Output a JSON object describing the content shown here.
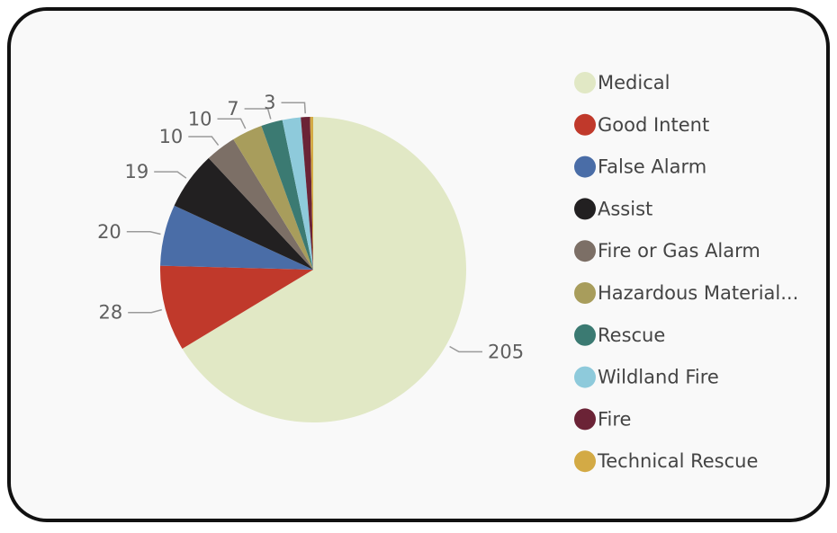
{
  "chart_data": {
    "type": "pie",
    "title": "",
    "legend_placement": "right",
    "slices": [
      {
        "label": "Medical",
        "value": 205,
        "display": "205",
        "color": "#e1e8c5"
      },
      {
        "label": "Good Intent",
        "value": 28,
        "display": "28",
        "color": "#c0392b"
      },
      {
        "label": "False Alarm",
        "value": 20,
        "display": "20",
        "color": "#4a6da7"
      },
      {
        "label": "Assist",
        "value": 19,
        "display": "19",
        "color": "#222021"
      },
      {
        "label": "Fire or Gas Alarm",
        "value": 10,
        "display": "10",
        "color": "#7c6f66"
      },
      {
        "label": "Hazardous Material...",
        "value": 10,
        "display": "10",
        "color": "#a89d5c"
      },
      {
        "label": "Rescue",
        "value": 7,
        "display": "7",
        "color": "#3b7a72"
      },
      {
        "label": "Wildland Fire",
        "value": 6,
        "display": "",
        "color": "#8ecadb"
      },
      {
        "label": "Fire",
        "value": 3,
        "display": "3",
        "color": "#6b2336"
      },
      {
        "label": "Technical Rescue",
        "value": 1,
        "display": "",
        "color": "#d3aa45"
      }
    ]
  }
}
